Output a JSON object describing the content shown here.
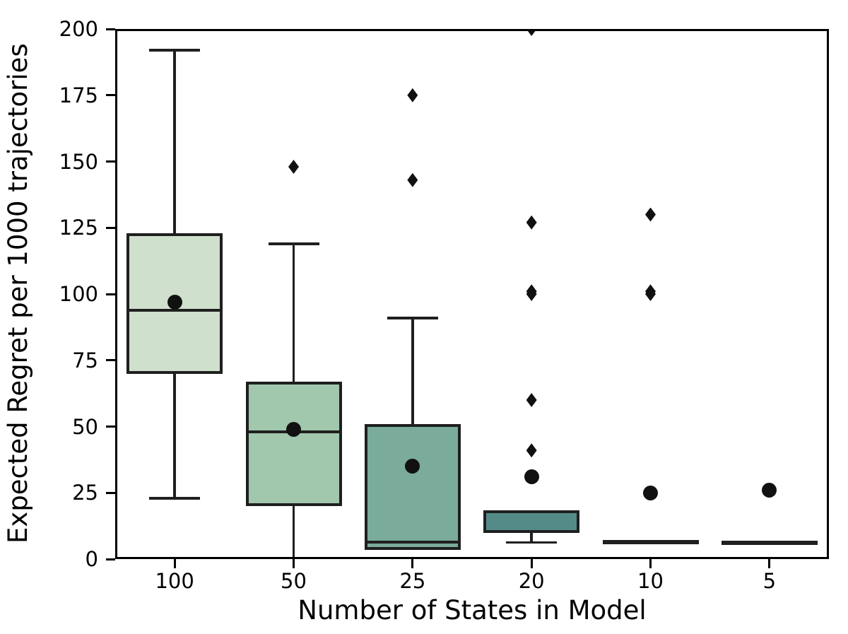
{
  "chart_data": {
    "type": "boxplot",
    "title": "",
    "xlabel": "Number of States in Model",
    "ylabel": "Expected Regret per 1000 trajectories",
    "categories": [
      "100",
      "50",
      "25",
      "20",
      "10",
      "5"
    ],
    "ylim": [
      0,
      200
    ],
    "yticks": [
      0,
      25,
      50,
      75,
      100,
      125,
      150,
      175,
      200
    ],
    "grid": false,
    "legend": "none",
    "edge_color": "#1f1f1f",
    "marker_color": "#111111",
    "mean_marker": "black-circle",
    "outlier_marker": "black-diamond",
    "series": [
      {
        "category": "100",
        "fill": "#cfe0cc",
        "q1": 70,
        "median": 94,
        "q3": 123,
        "whisker_low": 23,
        "whisker_high": 192,
        "mean": 97,
        "outliers": []
      },
      {
        "category": "50",
        "fill": "#a1c7ad",
        "q1": 20,
        "median": 48,
        "q3": 67,
        "whisker_low": 0,
        "whisker_high": 119,
        "mean": 49,
        "outliers": [
          148
        ]
      },
      {
        "category": "25",
        "fill": "#7aab9b",
        "q1": 3.4,
        "median": 6.4,
        "q3": 51,
        "whisker_low": 3.4,
        "whisker_high": 91,
        "mean": 35,
        "outliers": [
          175,
          143
        ]
      },
      {
        "category": "20",
        "fill": "#548b88",
        "q1": 10,
        "median": 17.8,
        "q3": 18.3,
        "whisker_low": 6.3,
        "whisker_high": 18.3,
        "mean": 31,
        "outliers": [
          200,
          127,
          101,
          100,
          60,
          41
        ]
      },
      {
        "category": "10",
        "fill": "#3d7279",
        "q1": 6.3,
        "median": 6.3,
        "q3": 6.3,
        "whisker_low": 6.3,
        "whisker_high": 6.3,
        "mean": 25,
        "outliers": [
          130,
          101,
          100
        ]
      },
      {
        "category": "5",
        "fill": "#2c5c6b",
        "q1": 6.2,
        "median": 6.2,
        "q3": 6.2,
        "whisker_low": 6.2,
        "whisker_high": 6.2,
        "mean": 26,
        "outliers": []
      }
    ]
  }
}
